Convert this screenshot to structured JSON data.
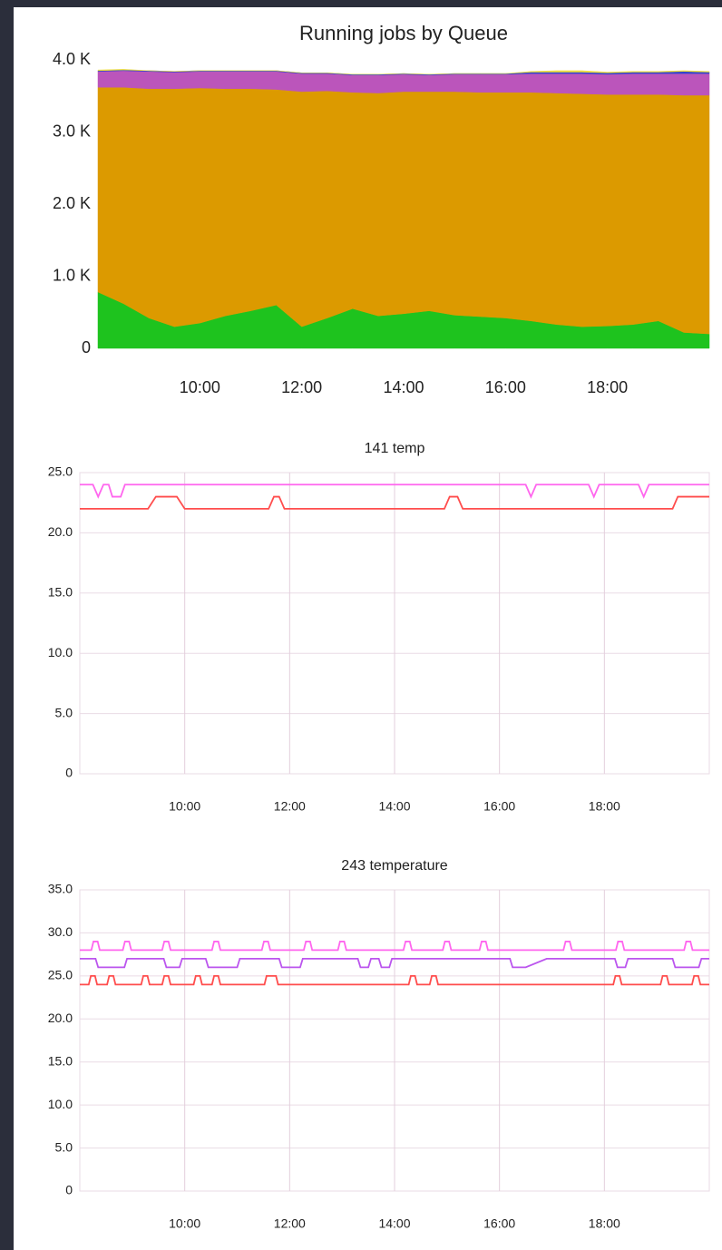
{
  "chart_data": [
    {
      "type": "area",
      "stacked": true,
      "title": "Running jobs by Queue",
      "grid": false,
      "x": [
        8,
        8.5,
        9,
        9.5,
        10,
        10.5,
        11,
        11.5,
        12,
        12.5,
        13,
        13.5,
        14,
        14.5,
        15,
        15.5,
        16,
        16.5,
        17,
        17.5,
        18,
        18.5,
        19,
        19.5,
        20
      ],
      "xlim": [
        8,
        20
      ],
      "xticks": [
        {
          "value": 10,
          "label": "10:00"
        },
        {
          "value": 12,
          "label": "12:00"
        },
        {
          "value": 14,
          "label": "14:00"
        },
        {
          "value": 16,
          "label": "16:00"
        },
        {
          "value": 18,
          "label": "18:00"
        }
      ],
      "ylim": [
        0,
        4000
      ],
      "yticks": [
        0,
        {
          "value": 1000,
          "label": "1.0 K"
        },
        {
          "value": 2000,
          "label": "2.0 K"
        },
        {
          "value": 3000,
          "label": "3.0 K"
        },
        {
          "value": 4000,
          "label": "4.0 K"
        }
      ],
      "series": [
        {
          "color": "#1ec31e",
          "values": [
            780,
            620,
            420,
            300,
            350,
            450,
            520,
            600,
            300,
            420,
            550,
            450,
            480,
            520,
            460,
            440,
            420,
            380,
            330,
            300,
            310,
            330,
            380,
            220,
            200
          ]
        },
        {
          "color": "#dc9a00",
          "values": [
            2840,
            3000,
            3180,
            3300,
            3260,
            3150,
            3080,
            2990,
            3260,
            3150,
            3000,
            3090,
            3080,
            3040,
            3100,
            3110,
            3130,
            3170,
            3210,
            3230,
            3210,
            3190,
            3140,
            3290,
            3310
          ]
        },
        {
          "color": "#bb55bb",
          "values": [
            220,
            230,
            240,
            230,
            230,
            240,
            240,
            250,
            250,
            240,
            240,
            250,
            240,
            230,
            240,
            250,
            250,
            260,
            270,
            280,
            280,
            290,
            290,
            300,
            300
          ]
        },
        {
          "color": "#3344cc",
          "values": [
            10,
            10,
            10,
            10,
            10,
            10,
            10,
            10,
            10,
            10,
            10,
            10,
            10,
            10,
            10,
            10,
            10,
            20,
            20,
            20,
            20,
            20,
            20,
            30,
            20
          ]
        },
        {
          "color": "#f0e040",
          "values": [
            10,
            10,
            0,
            0,
            0,
            0,
            0,
            0,
            0,
            0,
            0,
            0,
            0,
            0,
            0,
            0,
            0,
            10,
            20,
            20,
            10,
            10,
            10,
            10,
            10
          ]
        }
      ]
    },
    {
      "type": "line",
      "title": "141 temp",
      "grid": true,
      "xlim": [
        8,
        20
      ],
      "xticks": [
        {
          "value": 10,
          "label": "10:00"
        },
        {
          "value": 12,
          "label": "12:00"
        },
        {
          "value": 14,
          "label": "14:00"
        },
        {
          "value": 16,
          "label": "16:00"
        },
        {
          "value": 18,
          "label": "18:00"
        }
      ],
      "ylim": [
        0,
        25
      ],
      "yticks": [
        0,
        {
          "value": 5,
          "label": "5.0"
        },
        {
          "value": 10,
          "label": "10.0"
        },
        {
          "value": 15,
          "label": "15.0"
        },
        {
          "value": 20,
          "label": "20.0"
        },
        {
          "value": 25,
          "label": "25.0"
        }
      ],
      "series": [
        {
          "color": "#ff66ee",
          "x": [
            8.0,
            8.25,
            8.35,
            8.45,
            8.55,
            8.62,
            8.78,
            8.86,
            16.5,
            16.6,
            16.7,
            17.7,
            17.8,
            17.9,
            18.65,
            18.75,
            18.85,
            20.0
          ],
          "values": [
            24,
            24,
            23,
            24,
            24,
            23,
            23,
            24,
            24,
            23,
            24,
            24,
            23,
            24,
            24,
            23,
            24,
            24
          ]
        },
        {
          "color": "#ff4d4d",
          "x": [
            8.0,
            9.3,
            9.45,
            9.85,
            10.0,
            11.6,
            11.7,
            11.8,
            11.9,
            14.95,
            15.05,
            15.2,
            15.3,
            19.3,
            19.4,
            20.0
          ],
          "values": [
            22,
            22,
            23,
            23,
            22,
            22,
            23,
            23,
            22,
            22,
            23,
            23,
            22,
            22,
            23,
            23
          ]
        }
      ]
    },
    {
      "type": "line",
      "title": "243 temperature",
      "grid": true,
      "xlim": [
        8,
        20
      ],
      "xticks": [
        {
          "value": 10,
          "label": "10:00"
        },
        {
          "value": 12,
          "label": "12:00"
        },
        {
          "value": 14,
          "label": "14:00"
        },
        {
          "value": 16,
          "label": "16:00"
        },
        {
          "value": 18,
          "label": "18:00"
        }
      ],
      "ylim": [
        0,
        35
      ],
      "yticks": [
        0,
        {
          "value": 5,
          "label": "5.0"
        },
        {
          "value": 10,
          "label": "10.0"
        },
        {
          "value": 15,
          "label": "15.0"
        },
        {
          "value": 20,
          "label": "20.0"
        },
        {
          "value": 25,
          "label": "25.0"
        },
        {
          "value": 30,
          "label": "30.0"
        },
        {
          "value": 35,
          "label": "35.0"
        }
      ],
      "series": [
        {
          "color": "#ff66ee",
          "x": [
            8.0,
            8.22,
            8.26,
            8.34,
            8.38,
            8.82,
            8.86,
            8.94,
            8.98,
            9.57,
            9.61,
            9.69,
            9.73,
            10.52,
            10.56,
            10.64,
            10.68,
            11.47,
            11.51,
            11.59,
            11.63,
            12.27,
            12.31,
            12.39,
            12.43,
            12.92,
            12.96,
            13.04,
            13.08,
            14.17,
            14.21,
            14.29,
            14.33,
            14.92,
            14.96,
            15.04,
            15.08,
            15.62,
            15.66,
            15.74,
            15.78,
            17.22,
            17.26,
            17.34,
            17.38,
            18.22,
            18.26,
            18.34,
            18.38,
            19.52,
            19.56,
            19.64,
            19.68,
            20.0
          ],
          "values": [
            28,
            28,
            29,
            29,
            28,
            28,
            29,
            29,
            28,
            28,
            29,
            29,
            28,
            28,
            29,
            29,
            28,
            28,
            29,
            29,
            28,
            28,
            29,
            29,
            28,
            28,
            29,
            29,
            28,
            28,
            29,
            29,
            28,
            28,
            29,
            29,
            28,
            28,
            29,
            29,
            28,
            28,
            29,
            29,
            28,
            28,
            29,
            29,
            28,
            28,
            29,
            29,
            28,
            28
          ]
        },
        {
          "color": "#bb55ee",
          "x": [
            8.0,
            8.3,
            8.35,
            8.85,
            8.9,
            9.6,
            9.65,
            9.9,
            9.95,
            10.4,
            10.45,
            11.0,
            11.05,
            11.8,
            11.85,
            12.2,
            12.25,
            13.3,
            13.35,
            13.5,
            13.55,
            13.7,
            13.75,
            13.9,
            13.95,
            16.2,
            16.25,
            16.5,
            16.9,
            18.2,
            18.25,
            18.4,
            18.45,
            19.3,
            19.35,
            19.8,
            19.85,
            20.0
          ],
          "values": [
            27,
            27,
            26,
            26,
            27,
            27,
            26,
            26,
            27,
            27,
            26,
            26,
            27,
            27,
            26,
            26,
            27,
            27,
            26,
            26,
            27,
            27,
            26,
            26,
            27,
            27,
            26,
            26,
            27,
            27,
            26,
            26,
            27,
            27,
            26,
            26,
            27,
            27
          ]
        },
        {
          "color": "#ff4d4d",
          "x": [
            8.0,
            8.17,
            8.21,
            8.29,
            8.33,
            8.52,
            8.56,
            8.64,
            8.68,
            9.17,
            9.21,
            9.29,
            9.33,
            9.57,
            9.61,
            9.69,
            9.73,
            10.17,
            10.21,
            10.29,
            10.33,
            10.52,
            10.56,
            10.64,
            10.68,
            11.52,
            11.56,
            11.74,
            11.78,
            14.27,
            14.31,
            14.39,
            14.43,
            14.67,
            14.71,
            14.79,
            14.83,
            18.17,
            18.21,
            18.29,
            18.33,
            19.07,
            19.11,
            19.19,
            19.23,
            19.67,
            19.71,
            19.79,
            19.83,
            20.0
          ],
          "values": [
            24,
            24,
            25,
            25,
            24,
            24,
            25,
            25,
            24,
            24,
            25,
            25,
            24,
            24,
            25,
            25,
            24,
            24,
            25,
            25,
            24,
            24,
            25,
            25,
            24,
            24,
            25,
            25,
            24,
            24,
            25,
            25,
            24,
            24,
            25,
            25,
            24,
            24,
            25,
            25,
            24,
            24,
            25,
            25,
            24,
            24,
            25,
            25,
            24,
            24
          ]
        }
      ]
    }
  ]
}
